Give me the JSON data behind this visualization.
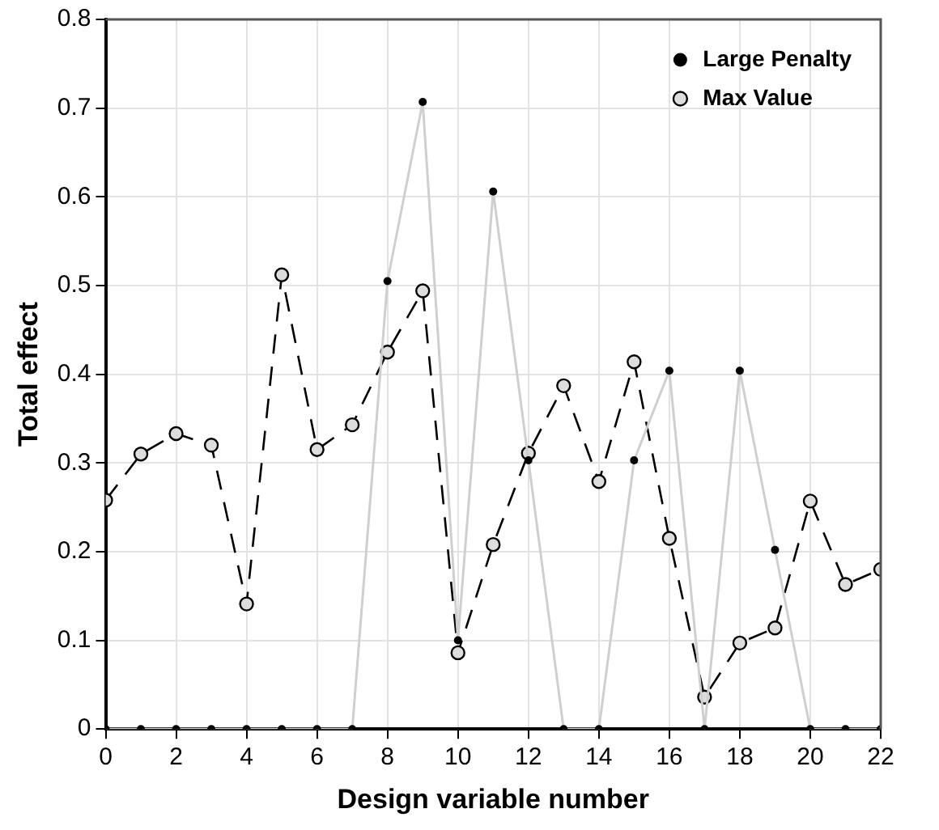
{
  "chart_data": {
    "type": "line",
    "xlabel": "Design variable number",
    "ylabel": "Total effect",
    "xlim": [
      0,
      22
    ],
    "xticks": [
      0,
      2,
      4,
      6,
      8,
      10,
      12,
      14,
      16,
      18,
      20,
      22
    ],
    "ylim": [
      0,
      0.8
    ],
    "yticks": [
      0,
      0.1,
      0.2,
      0.3,
      0.4,
      0.5,
      0.6,
      0.7,
      0.8
    ],
    "grid": true,
    "legend": "top right",
    "marker": "circle",
    "series": [
      {
        "name": "Large Penalty",
        "color": "#cfcfcf",
        "line_style": "solid",
        "x": [
          0,
          1,
          2,
          3,
          4,
          5,
          6,
          7,
          8,
          9,
          10,
          11,
          12,
          13,
          14,
          15,
          16,
          17,
          18,
          19,
          20,
          21,
          22
        ],
        "values": [
          0,
          0,
          0,
          0,
          0,
          0,
          0,
          0,
          0.505,
          0.707,
          0.1,
          0.606,
          0.303,
          0,
          0,
          0.303,
          0.404,
          0,
          0.404,
          0.202,
          0,
          0,
          0
        ]
      },
      {
        "name": "Max Value",
        "color": "#000000",
        "line_style": "dashed",
        "x": [
          0,
          1,
          2,
          3,
          4,
          5,
          6,
          7,
          8,
          9,
          10,
          11,
          12,
          13,
          14,
          15,
          16,
          17,
          18,
          19,
          20,
          21,
          22
        ],
        "values": [
          0.258,
          0.31,
          0.333,
          0.32,
          0.141,
          0.512,
          0.315,
          0.343,
          0.425,
          0.494,
          0.086,
          0.208,
          0.311,
          0.387,
          0.279,
          0.414,
          0.215,
          0.036,
          0.097,
          0.114,
          0.257,
          0.163,
          0.18
        ]
      }
    ]
  }
}
